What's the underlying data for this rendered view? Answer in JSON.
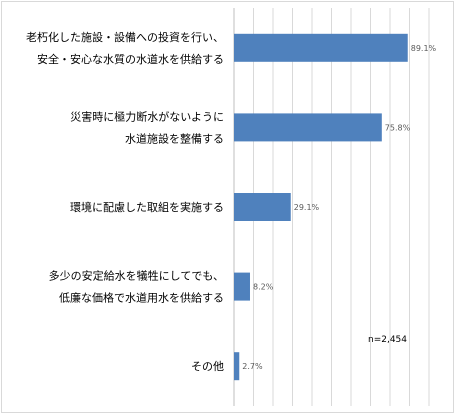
{
  "chart_data": {
    "type": "bar",
    "orientation": "horizontal",
    "categories": [
      [
        "老朽化した施設・設備への投資を行い、",
        "安全・安心な水質の水道水を供給する"
      ],
      [
        "災害時に極力断水がないように",
        "水道施設を整備する"
      ],
      [
        "環境に配慮した取組を実施する"
      ],
      [
        "多少の安定給水を犠牲にしてでも、",
        "低廉な価格で水道用水を供給する"
      ],
      [
        "その他"
      ]
    ],
    "values": [
      89.1,
      75.8,
      29.1,
      8.2,
      2.7
    ],
    "value_labels": [
      "89.1%",
      "75.8%",
      "29.1%",
      "8.2%",
      "2.7%"
    ],
    "xlim": [
      0,
      100
    ],
    "grid": true,
    "bar_color": "#4f81bd",
    "annotation": "n=2,454"
  }
}
